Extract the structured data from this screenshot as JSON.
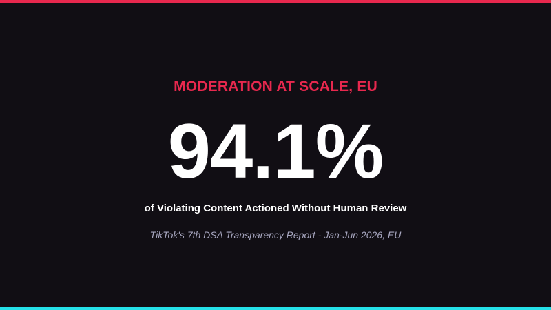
{
  "slide": {
    "kicker": "MODERATION AT SCALE, EU",
    "stat": "94.1%",
    "caption": "of Violating Content Actioned Without Human Review",
    "source": "TikTok's 7th DSA Transparency Report - Jan-Jun 2026, EU"
  },
  "colors": {
    "background": "#110e14",
    "accent_top": "#e8284e",
    "accent_bottom": "#25e0e8",
    "stat_text": "#ffffff",
    "source_text": "#a7a6bf"
  }
}
